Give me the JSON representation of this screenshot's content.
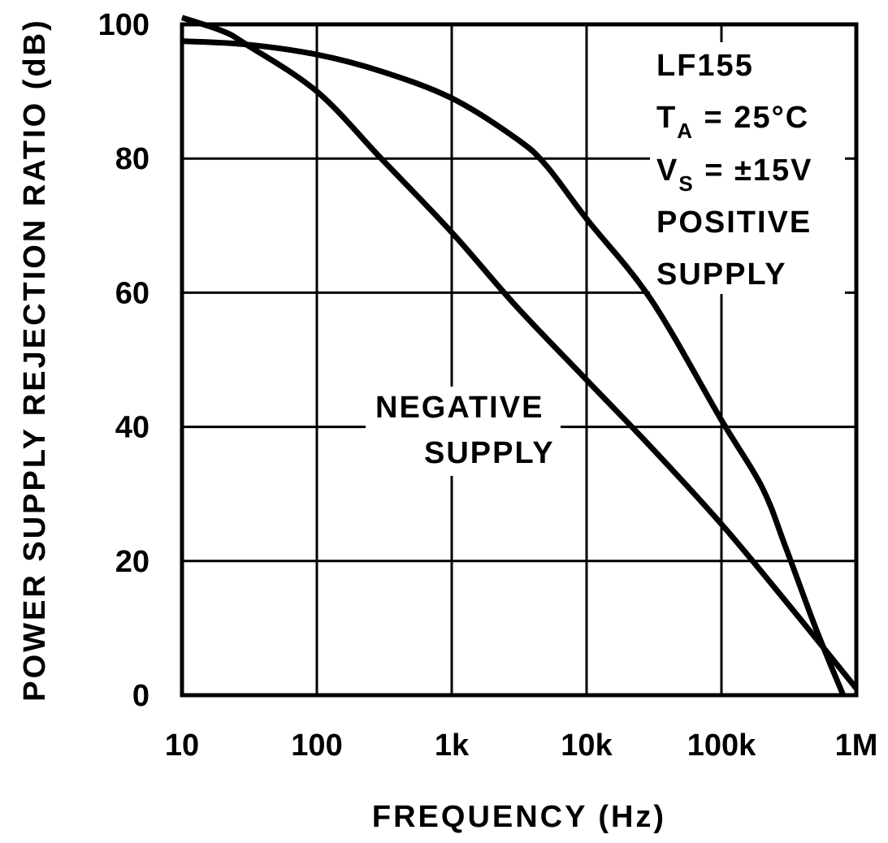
{
  "chart_data": {
    "type": "line",
    "title": "",
    "xlabel": "FREQUENCY (Hz)",
    "ylabel": "POWER SUPPLY REJECTION RATIO (dB)",
    "xscale": "log",
    "xlim": [
      10,
      1000000
    ],
    "ylim": [
      0,
      100
    ],
    "grid": true,
    "x_ticks": [
      10,
      100,
      1000,
      10000,
      100000,
      1000000
    ],
    "x_tick_labels": [
      "10",
      "100",
      "1k",
      "10k",
      "100k",
      "1M"
    ],
    "y_ticks": [
      0,
      20,
      40,
      60,
      80,
      100
    ],
    "y_tick_labels": [
      "0",
      "20",
      "40",
      "60",
      "80",
      "100"
    ],
    "conditions": {
      "device": "LF155",
      "ta_symbol": "T",
      "ta_sub": "A",
      "ta_value": " = 25°C",
      "vs_symbol": "V",
      "vs_sub": "S",
      "vs_value": " = ±15V"
    },
    "series": [
      {
        "name": "POSITIVE SUPPLY",
        "label_lines": [
          "POSITIVE",
          "SUPPLY"
        ],
        "points": [
          [
            10,
            97.5
          ],
          [
            30,
            97
          ],
          [
            100,
            95.5
          ],
          [
            300,
            93
          ],
          [
            1000,
            89
          ],
          [
            3000,
            83
          ],
          [
            5000,
            79
          ],
          [
            10000,
            71
          ],
          [
            30000,
            59
          ],
          [
            100000,
            41
          ],
          [
            200000,
            31
          ],
          [
            300000,
            22
          ],
          [
            500000,
            10
          ],
          [
            800000,
            0
          ]
        ]
      },
      {
        "name": "NEGATIVE SUPPLY",
        "label_lines": [
          "NEGATIVE",
          "SUPPLY"
        ],
        "points": [
          [
            10,
            101
          ],
          [
            20,
            99
          ],
          [
            30,
            97
          ],
          [
            100,
            90
          ],
          [
            300,
            80
          ],
          [
            1000,
            69
          ],
          [
            3000,
            58
          ],
          [
            10000,
            47
          ],
          [
            30000,
            37
          ],
          [
            100000,
            25.5
          ],
          [
            300000,
            14
          ],
          [
            1000000,
            1
          ]
        ]
      }
    ]
  }
}
